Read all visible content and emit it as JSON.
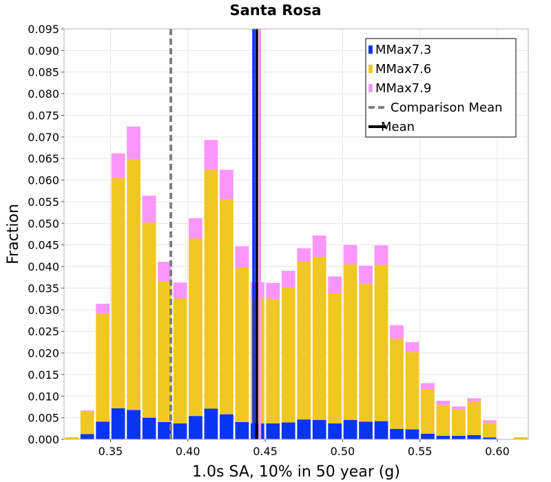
{
  "chart_data": {
    "type": "bar",
    "stacked": true,
    "title": "Santa Rosa",
    "xlabel": "1.0s SA, 10% in 50 year (g)",
    "ylabel": "Fraction",
    "xlim": [
      0.32,
      0.62
    ],
    "ylim": [
      0,
      0.095
    ],
    "x_ticks": [
      0.35,
      0.4,
      0.45,
      0.5,
      0.55,
      0.6
    ],
    "x_tick_labels": [
      "0.35",
      "0.40",
      "0.45",
      "0.50",
      "0.55",
      "0.60"
    ],
    "y_ticks": [
      0,
      0.005,
      0.01,
      0.015,
      0.02,
      0.025,
      0.03,
      0.035,
      0.04,
      0.045,
      0.05,
      0.055,
      0.06,
      0.065,
      0.07,
      0.075,
      0.08,
      0.085,
      0.09,
      0.095
    ],
    "y_tick_labels": [
      "0.000",
      "0.005",
      "0.010",
      "0.015",
      "0.020",
      "0.025",
      "0.030",
      "0.035",
      "0.040",
      "0.045",
      "0.050",
      "0.055",
      "0.060",
      "0.065",
      "0.070",
      "0.075",
      "0.080",
      "0.085",
      "0.090",
      "0.095"
    ],
    "grid": true,
    "bin_width": 0.01,
    "x": [
      0.32,
      0.33,
      0.34,
      0.35,
      0.36,
      0.37,
      0.38,
      0.39,
      0.4,
      0.41,
      0.42,
      0.43,
      0.44,
      0.45,
      0.46,
      0.47,
      0.48,
      0.49,
      0.5,
      0.51,
      0.52,
      0.53,
      0.54,
      0.55,
      0.56,
      0.57,
      0.58,
      0.59,
      0.6,
      0.61,
      0.62
    ],
    "series": [
      {
        "name": "MMax7.3",
        "color": "#0a35f0",
        "values": [
          0.0,
          0.0012,
          0.0041,
          0.0072,
          0.0068,
          0.005,
          0.004,
          0.0037,
          0.0054,
          0.0071,
          0.0058,
          0.004,
          0.0037,
          0.0037,
          0.0039,
          0.0046,
          0.0045,
          0.0037,
          0.0045,
          0.0041,
          0.0042,
          0.0024,
          0.0023,
          0.0013,
          0.0008,
          0.0008,
          0.001,
          0.0004,
          0.0,
          0.0,
          0.0
        ]
      },
      {
        "name": "MMax7.6",
        "color": "#f0c823",
        "values": [
          0.0005,
          0.0052,
          0.025,
          0.0533,
          0.0581,
          0.0452,
          0.0326,
          0.0289,
          0.0411,
          0.0553,
          0.0497,
          0.0357,
          0.029,
          0.0288,
          0.0312,
          0.0365,
          0.0378,
          0.0301,
          0.036,
          0.0319,
          0.0362,
          0.0209,
          0.0179,
          0.0102,
          0.0072,
          0.0061,
          0.0077,
          0.0034,
          0.0,
          0.0005,
          0.0
        ]
      },
      {
        "name": "MMax7.9",
        "color": "#fa96fa",
        "values": [
          0.0,
          0.0003,
          0.0023,
          0.0057,
          0.0075,
          0.0062,
          0.0045,
          0.0037,
          0.0047,
          0.0069,
          0.0069,
          0.005,
          0.0037,
          0.0037,
          0.0039,
          0.0031,
          0.0049,
          0.0039,
          0.0045,
          0.0042,
          0.0045,
          0.0031,
          0.0023,
          0.0015,
          0.0009,
          0.0007,
          0.0008,
          0.0006,
          0.0,
          0.0,
          0.0
        ]
      }
    ],
    "lines": [
      {
        "name": "Comparison Mean",
        "x": 0.389,
        "color": "#7f7f7f",
        "style": "dashed"
      },
      {
        "name": "Mean",
        "x": 0.4445,
        "color": "#000000",
        "style": "solid"
      }
    ],
    "extra_vlines": [
      {
        "x": 0.4425,
        "color": "#0a35f0"
      },
      {
        "x": 0.4465,
        "color": "#fa96fa"
      }
    ],
    "legend": {
      "placement": "top-right",
      "entries": [
        "MMax7.3",
        "MMax7.6",
        "MMax7.9",
        "Comparison Mean",
        "Mean"
      ]
    }
  }
}
